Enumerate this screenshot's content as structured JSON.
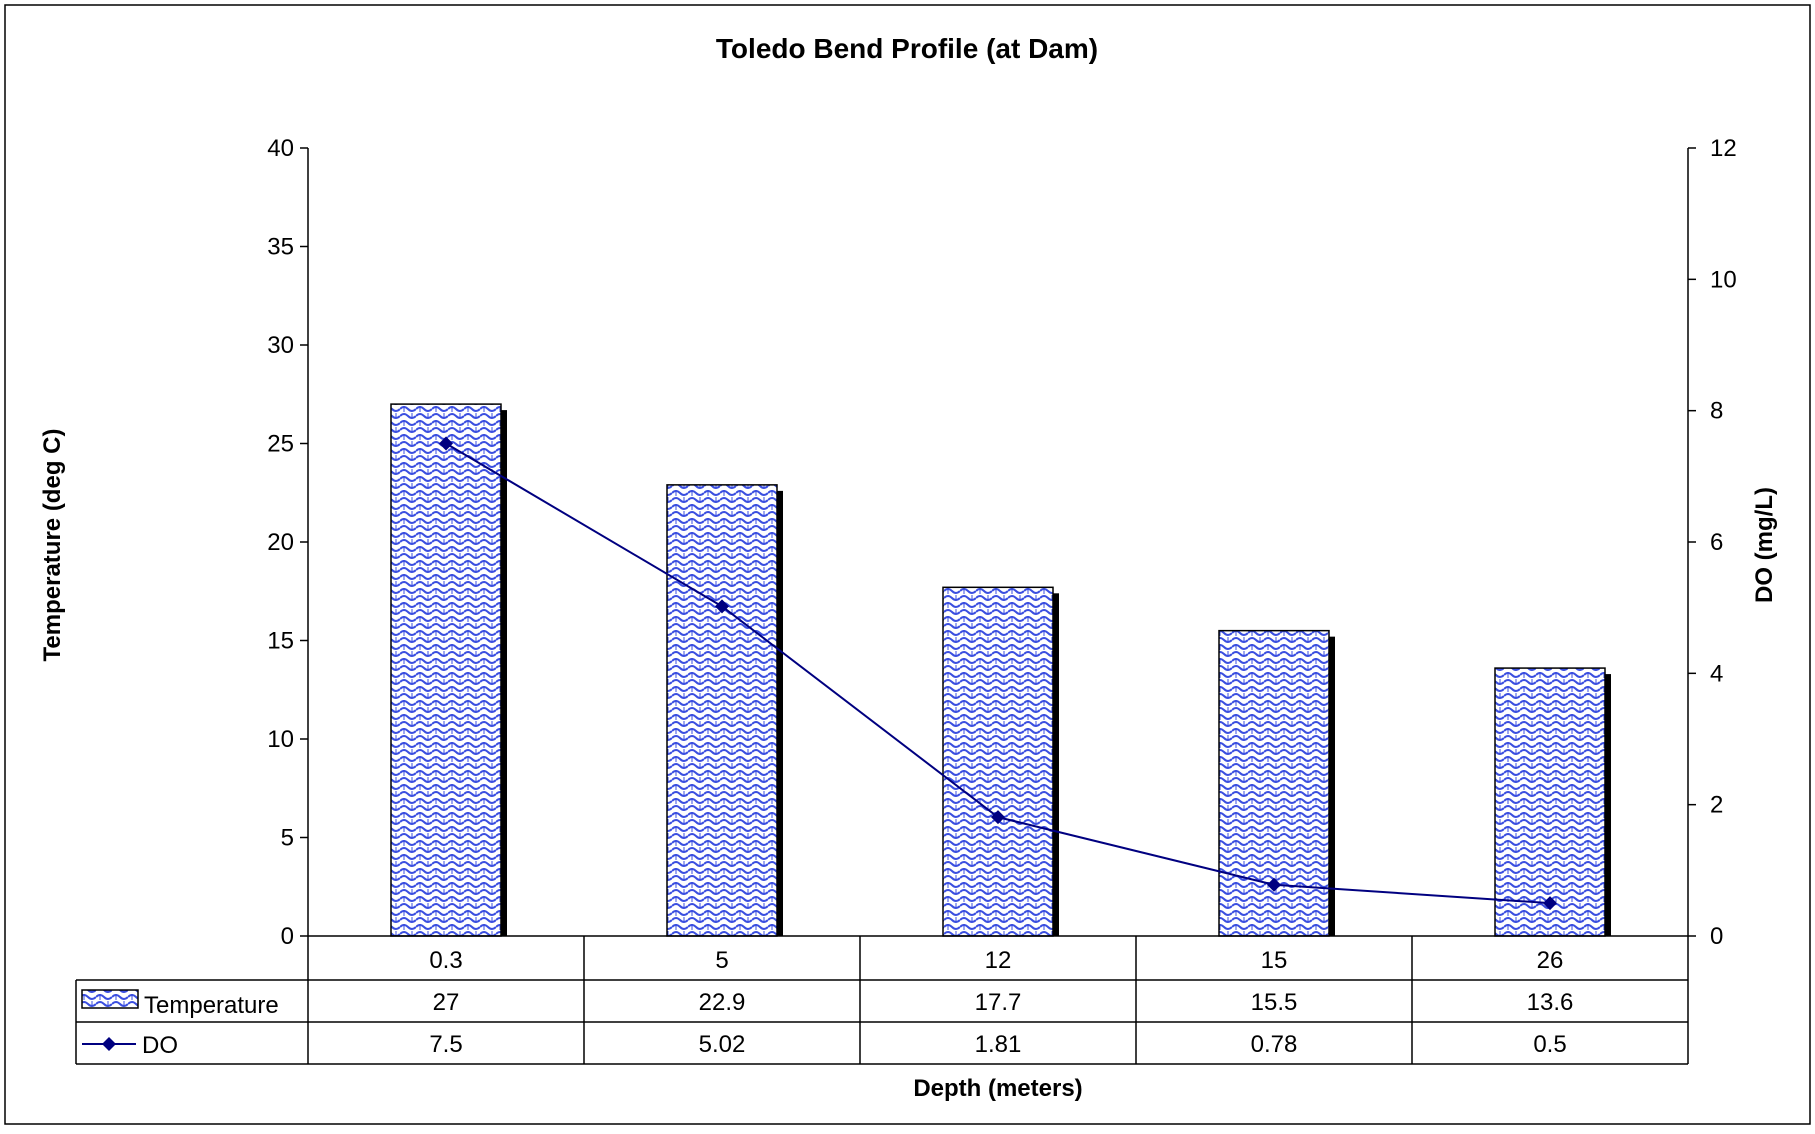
{
  "colors": {
    "bar_fill": "#ffffff",
    "bar_pattern": "#3b4fe0",
    "bar_outline": "#000000",
    "bar_shadow": "#000000",
    "line": "#000080",
    "marker": "#000080",
    "axis": "#000000"
  },
  "chart_data": {
    "type": "bar",
    "title": "Toledo Bend Profile (at Dam)",
    "xlabel": "Depth (meters)",
    "ylabel": "Temperature (deg C)",
    "y2label": "DO (mg/L)",
    "categories": [
      "0.3",
      "5",
      "12",
      "15",
      "26"
    ],
    "ylim": [
      0,
      40
    ],
    "y2lim": [
      0,
      12
    ],
    "yticks": [
      "0",
      "5",
      "10",
      "15",
      "20",
      "25",
      "30",
      "35",
      "40"
    ],
    "y2ticks": [
      "0",
      "2",
      "4",
      "6",
      "8",
      "10",
      "12"
    ],
    "series": [
      {
        "name": "Temperature",
        "type": "bar",
        "axis": "left",
        "values": [
          27,
          22.9,
          17.7,
          15.5,
          13.6
        ],
        "labels": [
          "27",
          "22.9",
          "17.7",
          "15.5",
          "13.6"
        ]
      },
      {
        "name": "DO",
        "type": "line",
        "axis": "right",
        "marker": "diamond",
        "values": [
          7.5,
          5.02,
          1.81,
          0.78,
          0.5
        ],
        "labels": [
          "7.5",
          "5.02",
          "1.81",
          "0.78",
          "0.5"
        ]
      }
    ],
    "grid": false,
    "legend": "data-table"
  }
}
